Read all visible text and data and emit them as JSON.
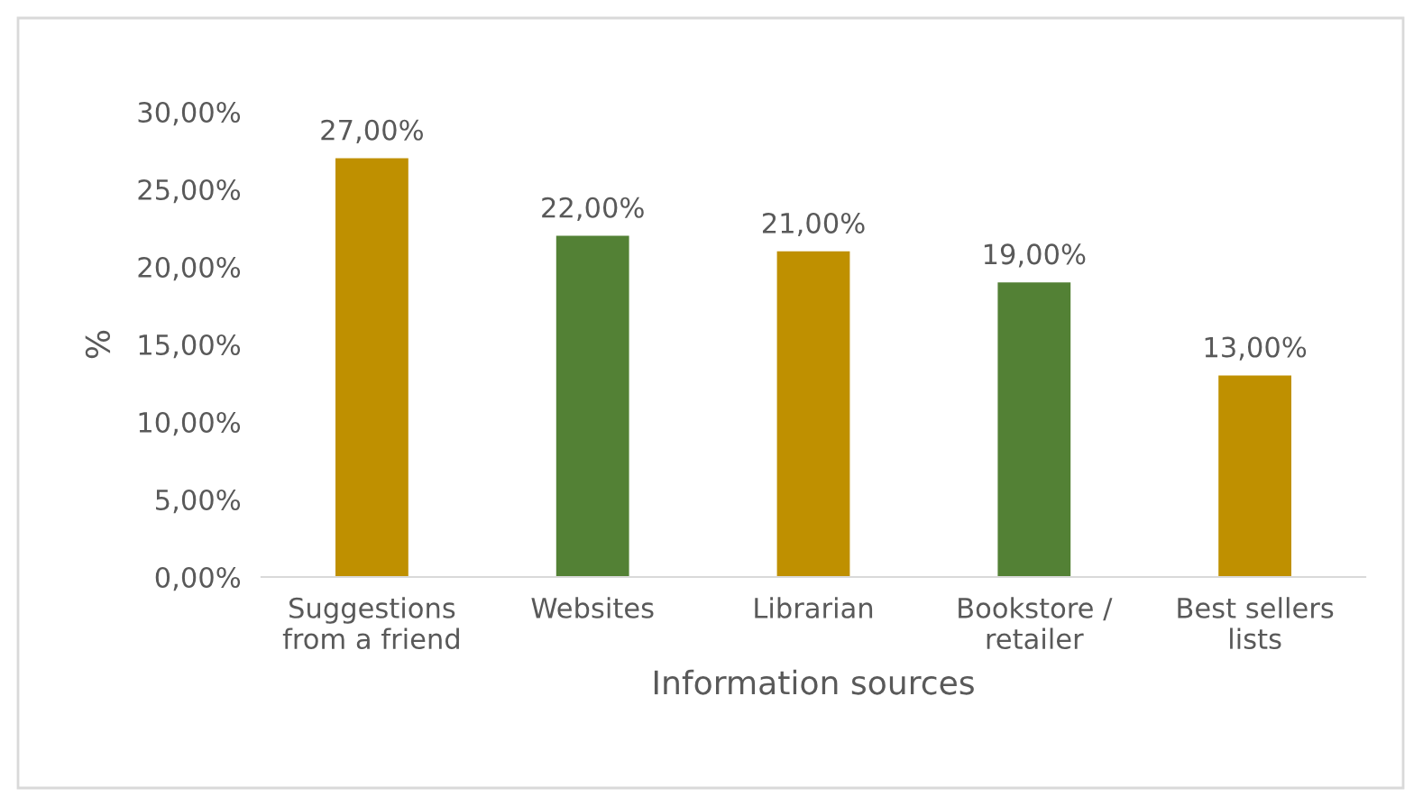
{
  "chart_data": {
    "type": "bar",
    "xlabel": "Information sources",
    "ylabel": "%",
    "categories": [
      "Suggestions\nfrom a friend",
      "Websites",
      "Librarian",
      "Bookstore /\nretailer",
      "Best sellers\nlists"
    ],
    "values": [
      27,
      22,
      21,
      19,
      13
    ],
    "colors": [
      "#bf9000",
      "#538135",
      "#bf9000",
      "#538135",
      "#bf9000"
    ],
    "value_labels": [
      "27,00%",
      "22,00%",
      "21,00%",
      "19,00%",
      "13,00%"
    ],
    "ylim": [
      0,
      30
    ],
    "yticks": [
      {
        "value": 0,
        "label": "0,00%"
      },
      {
        "value": 5,
        "label": "5,00%"
      },
      {
        "value": 10,
        "label": "10,00%"
      },
      {
        "value": 15,
        "label": "15,00%"
      },
      {
        "value": 20,
        "label": "20,00%"
      },
      {
        "value": 25,
        "label": "25,00%"
      },
      {
        "value": 30,
        "label": "30,00%"
      }
    ],
    "grid": false
  }
}
